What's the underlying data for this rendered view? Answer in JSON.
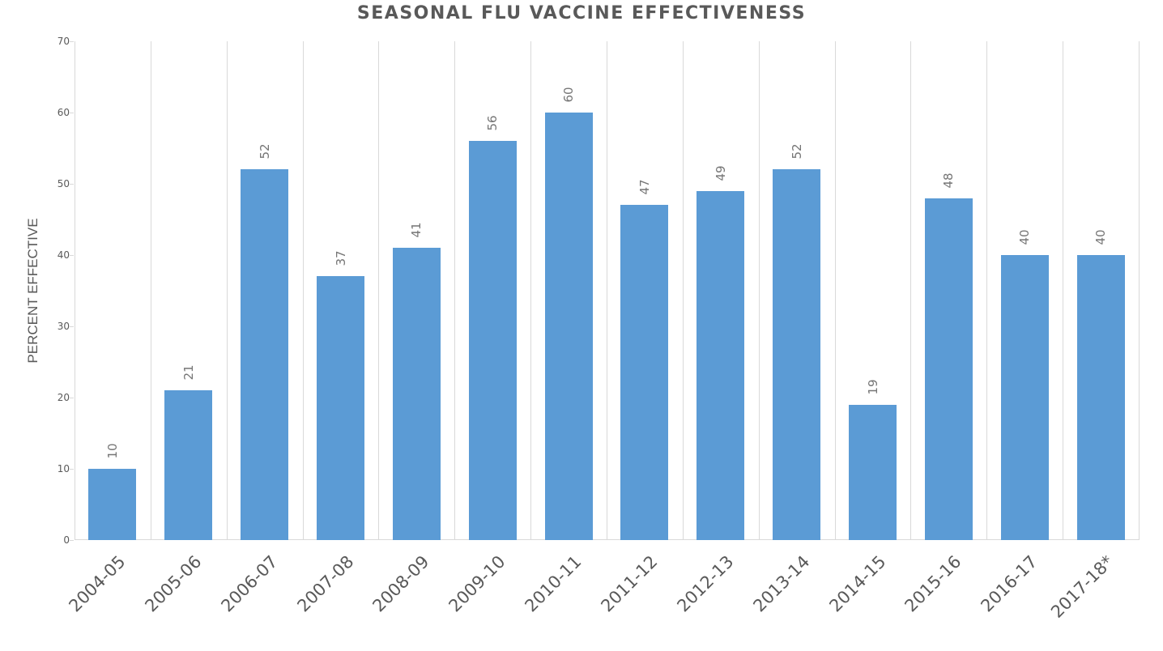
{
  "chart_data": {
    "type": "bar",
    "title": "SEASONAL FLU VACCINE EFFECTIVENESS",
    "xlabel": "",
    "ylabel": "PERCENT EFFECTIVE",
    "ylim": [
      0,
      70
    ],
    "yticks": [
      "0",
      "10",
      "20",
      "30",
      "40",
      "50",
      "60",
      "70"
    ],
    "categories": [
      "2004-05",
      "2005-06",
      "2006-07",
      "2007-08",
      "2008-09",
      "2009-10",
      "2010-11",
      "2011-12",
      "2012-13",
      "2013-14",
      "2014-15",
      "2015-16",
      "2016-17",
      "2017-18*"
    ],
    "values": [
      10,
      21,
      52,
      37,
      41,
      56,
      60,
      47,
      49,
      52,
      19,
      48,
      40,
      40
    ],
    "data_labels": [
      "10",
      "21",
      "52",
      "37",
      "41",
      "56",
      "60",
      "47",
      "49",
      "52",
      "19",
      "48",
      "40",
      "40"
    ],
    "series": [
      {
        "name": "Percent effective",
        "color": "#5b9bd5",
        "values": [
          10,
          21,
          52,
          37,
          41,
          56,
          60,
          47,
          49,
          52,
          19,
          48,
          40,
          40
        ]
      }
    ],
    "grid": {
      "vertical": true,
      "horizontal": false
    },
    "legend": null
  },
  "colors": {
    "bar": "#5b9bd5",
    "grid": "#d9d9d9",
    "text": "#595959",
    "data_label": "#757575"
  }
}
